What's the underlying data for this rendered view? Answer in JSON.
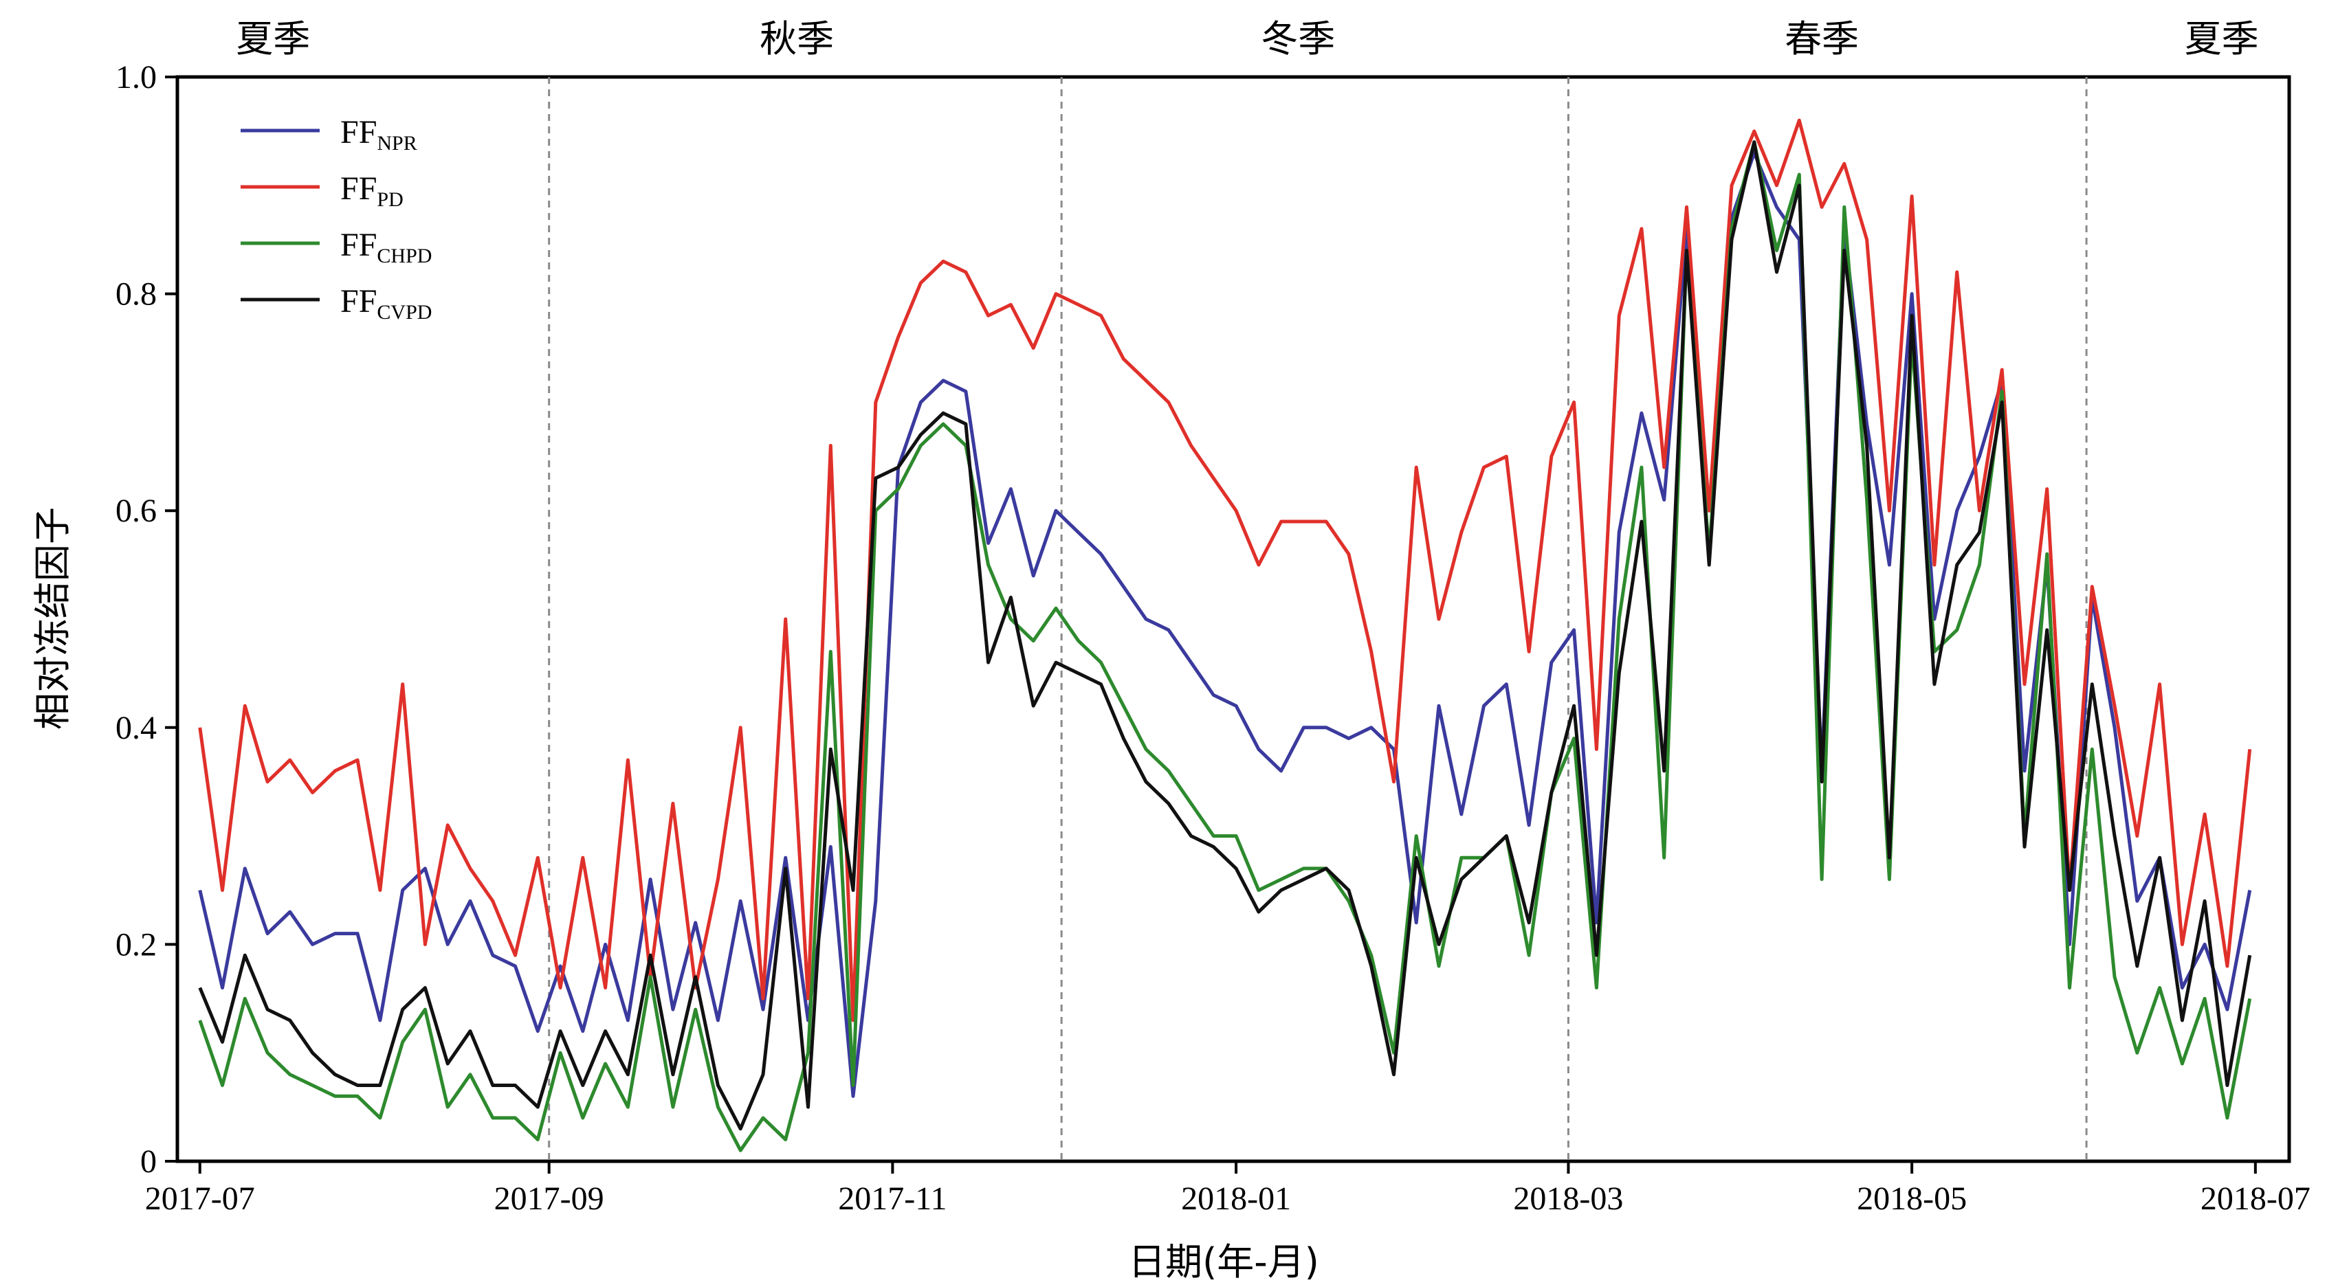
{
  "chart_data": {
    "type": "line",
    "xlabel": "日期(年-月)",
    "ylabel": "相对冻结因子",
    "ylim": [
      0,
      1.0
    ],
    "yticks": [
      "0",
      "0.2",
      "0.4",
      "0.6",
      "0.8",
      "1.0"
    ],
    "xlim": [
      "2017-06-27",
      "2018-07-07"
    ],
    "xticks": [
      {
        "date": "2017-07-01",
        "label": "2017-07"
      },
      {
        "date": "2017-09-01",
        "label": "2017-09"
      },
      {
        "date": "2017-11-01",
        "label": "2017-11"
      },
      {
        "date": "2018-01-01",
        "label": "2018-01"
      },
      {
        "date": "2018-03-01",
        "label": "2018-03"
      },
      {
        "date": "2018-05-01",
        "label": "2018-05"
      },
      {
        "date": "2018-07-01",
        "label": "2018-07"
      }
    ],
    "season_boundaries": [
      "2017-09-01",
      "2017-12-01",
      "2018-03-01",
      "2018-06-01"
    ],
    "seasons": [
      {
        "label": "夏季",
        "date": "2017-07-14"
      },
      {
        "label": "秋季",
        "date": "2017-10-15"
      },
      {
        "label": "冬季",
        "date": "2018-01-12"
      },
      {
        "label": "春季",
        "date": "2018-04-15"
      },
      {
        "label": "夏季",
        "date": "2018-06-25"
      }
    ],
    "legend": {
      "placement": "top-left"
    },
    "x": [
      "2017-07-01",
      "2017-07-05",
      "2017-07-09",
      "2017-07-13",
      "2017-07-17",
      "2017-07-21",
      "2017-07-25",
      "2017-07-29",
      "2017-08-02",
      "2017-08-06",
      "2017-08-10",
      "2017-08-14",
      "2017-08-18",
      "2017-08-22",
      "2017-08-26",
      "2017-08-30",
      "2017-09-03",
      "2017-09-07",
      "2017-09-11",
      "2017-09-15",
      "2017-09-19",
      "2017-09-23",
      "2017-09-27",
      "2017-10-01",
      "2017-10-05",
      "2017-10-09",
      "2017-10-13",
      "2017-10-17",
      "2017-10-21",
      "2017-10-25",
      "2017-10-29",
      "2017-11-02",
      "2017-11-06",
      "2017-11-10",
      "2017-11-14",
      "2017-11-18",
      "2017-11-22",
      "2017-11-26",
      "2017-11-30",
      "2017-12-04",
      "2017-12-08",
      "2017-12-12",
      "2017-12-16",
      "2017-12-20",
      "2017-12-24",
      "2017-12-28",
      "2018-01-01",
      "2018-01-05",
      "2018-01-09",
      "2018-01-13",
      "2018-01-17",
      "2018-01-21",
      "2018-01-25",
      "2018-01-29",
      "2018-02-02",
      "2018-02-06",
      "2018-02-10",
      "2018-02-14",
      "2018-02-18",
      "2018-02-22",
      "2018-02-26",
      "2018-03-02",
      "2018-03-06",
      "2018-03-10",
      "2018-03-14",
      "2018-03-18",
      "2018-03-22",
      "2018-03-26",
      "2018-03-30",
      "2018-04-03",
      "2018-04-07",
      "2018-04-11",
      "2018-04-15",
      "2018-04-19",
      "2018-04-23",
      "2018-04-27",
      "2018-05-01",
      "2018-05-05",
      "2018-05-09",
      "2018-05-13",
      "2018-05-17",
      "2018-05-21",
      "2018-05-25",
      "2018-05-29",
      "2018-06-02",
      "2018-06-06",
      "2018-06-10",
      "2018-06-14",
      "2018-06-18",
      "2018-06-22",
      "2018-06-26",
      "2018-06-30"
    ],
    "series": [
      {
        "name": "FF",
        "sub": "NPR",
        "color": "#3a3a9e",
        "values": [
          0.25,
          0.16,
          0.27,
          0.21,
          0.23,
          0.2,
          0.21,
          0.21,
          0.13,
          0.25,
          0.27,
          0.2,
          0.24,
          0.19,
          0.18,
          0.12,
          0.18,
          0.12,
          0.2,
          0.13,
          0.26,
          0.14,
          0.22,
          0.13,
          0.24,
          0.14,
          0.28,
          0.13,
          0.29,
          0.06,
          0.24,
          0.64,
          0.7,
          0.72,
          0.71,
          0.57,
          0.62,
          0.54,
          0.6,
          0.58,
          0.56,
          0.53,
          0.5,
          0.49,
          0.46,
          0.43,
          0.42,
          0.38,
          0.36,
          0.4,
          0.4,
          0.39,
          0.4,
          0.38,
          0.22,
          0.42,
          0.32,
          0.42,
          0.44,
          0.31,
          0.46,
          0.49,
          0.22,
          0.58,
          0.69,
          0.61,
          0.86,
          0.6,
          0.87,
          0.93,
          0.88,
          0.85,
          0.36,
          0.86,
          0.68,
          0.55,
          0.8,
          0.5,
          0.6,
          0.65,
          0.72,
          0.36,
          0.55,
          0.2,
          0.52,
          0.4,
          0.24,
          0.28,
          0.16,
          0.2,
          0.14,
          0.25
        ]
      },
      {
        "name": "FF",
        "sub": "PD",
        "color": "#e0302a",
        "values": [
          0.4,
          0.25,
          0.42,
          0.35,
          0.37,
          0.34,
          0.36,
          0.37,
          0.25,
          0.44,
          0.2,
          0.31,
          0.27,
          0.24,
          0.19,
          0.28,
          0.16,
          0.28,
          0.16,
          0.37,
          0.17,
          0.33,
          0.16,
          0.26,
          0.4,
          0.15,
          0.5,
          0.15,
          0.66,
          0.13,
          0.7,
          0.76,
          0.81,
          0.83,
          0.82,
          0.78,
          0.79,
          0.75,
          0.8,
          0.79,
          0.78,
          0.74,
          0.72,
          0.7,
          0.66,
          0.63,
          0.6,
          0.55,
          0.59,
          0.59,
          0.59,
          0.56,
          0.47,
          0.35,
          0.64,
          0.5,
          0.58,
          0.64,
          0.65,
          0.47,
          0.65,
          0.7,
          0.38,
          0.78,
          0.86,
          0.64,
          0.88,
          0.6,
          0.9,
          0.95,
          0.9,
          0.96,
          0.88,
          0.92,
          0.85,
          0.6,
          0.89,
          0.55,
          0.82,
          0.6,
          0.73,
          0.44,
          0.62,
          0.25,
          0.53,
          0.42,
          0.3,
          0.44,
          0.2,
          0.32,
          0.18,
          0.38
        ]
      },
      {
        "name": "FF",
        "sub": "CHPD",
        "color": "#2d8a2d",
        "values": [
          0.13,
          0.07,
          0.15,
          0.1,
          0.08,
          0.07,
          0.06,
          0.06,
          0.04,
          0.11,
          0.14,
          0.05,
          0.08,
          0.04,
          0.04,
          0.02,
          0.1,
          0.04,
          0.09,
          0.05,
          0.17,
          0.05,
          0.14,
          0.05,
          0.01,
          0.04,
          0.02,
          0.1,
          0.47,
          0.07,
          0.6,
          0.62,
          0.66,
          0.68,
          0.66,
          0.55,
          0.5,
          0.48,
          0.51,
          0.48,
          0.46,
          0.42,
          0.38,
          0.36,
          0.33,
          0.3,
          0.3,
          0.25,
          0.26,
          0.27,
          0.27,
          0.24,
          0.19,
          0.1,
          0.3,
          0.18,
          0.28,
          0.28,
          0.3,
          0.19,
          0.34,
          0.39,
          0.16,
          0.5,
          0.64,
          0.28,
          0.84,
          0.56,
          0.86,
          0.94,
          0.84,
          0.91,
          0.26,
          0.88,
          0.61,
          0.26,
          0.76,
          0.47,
          0.49,
          0.55,
          0.71,
          0.3,
          0.56,
          0.16,
          0.38,
          0.17,
          0.1,
          0.16,
          0.09,
          0.15,
          0.04,
          0.15
        ]
      },
      {
        "name": "FF",
        "sub": "CVPD",
        "color": "#111111",
        "values": [
          0.16,
          0.11,
          0.19,
          0.14,
          0.13,
          0.1,
          0.08,
          0.07,
          0.07,
          0.14,
          0.16,
          0.09,
          0.12,
          0.07,
          0.07,
          0.05,
          0.12,
          0.07,
          0.12,
          0.08,
          0.19,
          0.08,
          0.17,
          0.07,
          0.03,
          0.08,
          0.27,
          0.05,
          0.38,
          0.25,
          0.63,
          0.64,
          0.67,
          0.69,
          0.68,
          0.46,
          0.52,
          0.42,
          0.46,
          0.45,
          0.44,
          0.39,
          0.35,
          0.33,
          0.3,
          0.29,
          0.27,
          0.23,
          0.25,
          0.26,
          0.27,
          0.25,
          0.18,
          0.08,
          0.28,
          0.2,
          0.26,
          0.28,
          0.3,
          0.22,
          0.34,
          0.42,
          0.19,
          0.45,
          0.59,
          0.36,
          0.84,
          0.55,
          0.85,
          0.94,
          0.82,
          0.9,
          0.35,
          0.84,
          0.66,
          0.28,
          0.78,
          0.44,
          0.55,
          0.58,
          0.7,
          0.29,
          0.49,
          0.25,
          0.44,
          0.3,
          0.18,
          0.28,
          0.13,
          0.24,
          0.07,
          0.19
        ]
      }
    ]
  }
}
